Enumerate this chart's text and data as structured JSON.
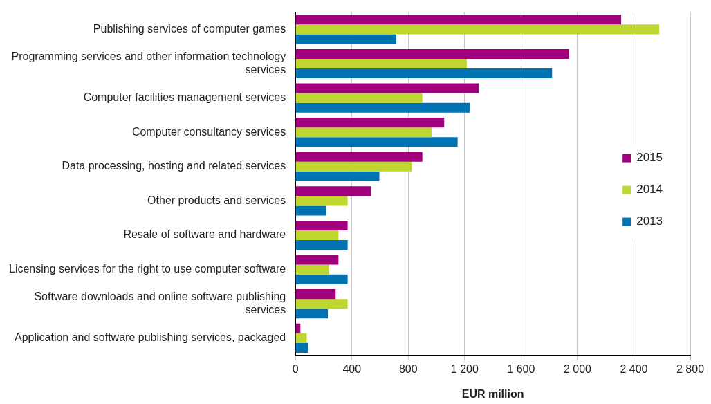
{
  "chart_data": {
    "type": "bar",
    "orientation": "horizontal",
    "xlabel": "EUR million",
    "categories": [
      "Publishing services of computer games",
      "Programming services and other information technology services",
      "Computer facilities management services",
      "Computer consultancy services",
      "Data processing, hosting and related services",
      "Other products and services",
      "Resale of software and hardware",
      "Licensing services for the right to use computer software",
      "Software downloads and online software publishing services",
      "Application and software publishing services, packaged"
    ],
    "series": [
      {
        "name": "2015",
        "color": "#a0007c",
        "values": [
          2310,
          1940,
          1300,
          1055,
          900,
          535,
          370,
          305,
          285,
          35
        ]
      },
      {
        "name": "2014",
        "color": "#bed62f",
        "values": [
          2580,
          1215,
          900,
          965,
          825,
          370,
          305,
          240,
          370,
          80
        ]
      },
      {
        "name": "2013",
        "color": "#0072b2",
        "values": [
          715,
          1820,
          1235,
          1150,
          595,
          220,
          370,
          370,
          230,
          90
        ]
      }
    ],
    "xlim": [
      0,
      2800
    ],
    "xticks": [
      0,
      400,
      800,
      {
        "value": 1200,
        "label": "1 200"
      },
      {
        "value": 1600,
        "label": "1 600"
      },
      {
        "value": 2000,
        "label": "2 000"
      },
      {
        "value": 2400,
        "label": "2 400"
      },
      {
        "value": 2800,
        "label": "2 800"
      }
    ],
    "grid": "x",
    "legend": "right"
  }
}
